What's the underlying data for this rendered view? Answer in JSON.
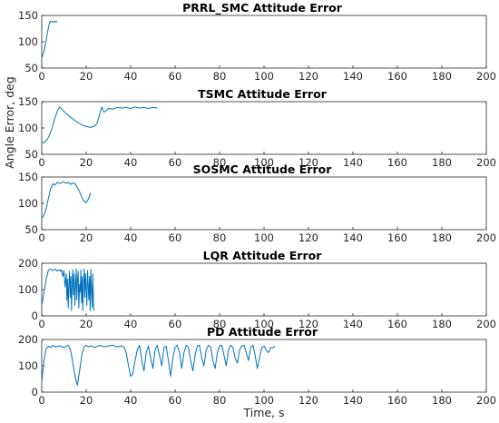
{
  "figure": {
    "xlabel": "Time, s",
    "ylabel": "Angle Error, deg",
    "line_color": "#0072bd"
  },
  "chart_data": [
    {
      "type": "line",
      "title": "PRRL_SMC Attitude Error",
      "xlim": [
        0,
        200
      ],
      "ylim": [
        50,
        150
      ],
      "xticks": [
        0,
        20,
        40,
        60,
        80,
        100,
        120,
        140,
        160,
        180,
        200
      ],
      "yticks": [
        50,
        100,
        150
      ],
      "series": [
        {
          "x": [
            0,
            0.5,
            1,
            1.5,
            2,
            2.5,
            3,
            3.5,
            4,
            4.5,
            5,
            5.5,
            6,
            6.5,
            7
          ],
          "y": [
            70,
            75,
            82,
            92,
            103,
            115,
            127,
            136,
            139,
            138,
            139,
            137,
            139,
            138,
            139
          ]
        }
      ]
    },
    {
      "type": "line",
      "title": "TSMC Attitude Error",
      "xlim": [
        0,
        200
      ],
      "ylim": [
        50,
        150
      ],
      "xticks": [
        0,
        20,
        40,
        60,
        80,
        100,
        120,
        140,
        160,
        180,
        200
      ],
      "yticks": [
        50,
        100,
        150
      ],
      "series": [
        {
          "x": [
            0,
            1,
            2,
            3,
            4,
            5,
            6,
            7,
            8,
            9,
            10,
            12,
            14,
            16,
            18,
            20,
            22,
            24,
            25,
            26,
            27,
            28,
            29,
            30,
            32,
            34,
            36,
            38,
            40,
            42,
            44,
            46,
            48,
            50,
            52
          ],
          "y": [
            72,
            73,
            76,
            82,
            92,
            105,
            120,
            132,
            140,
            136,
            131,
            124,
            117,
            111,
            106,
            103,
            101,
            104,
            110,
            125,
            140,
            130,
            133,
            137,
            136,
            139,
            138,
            139,
            137,
            140,
            138,
            139,
            137,
            139,
            138
          ]
        }
      ]
    },
    {
      "type": "line",
      "title": "SOSMC Attitude Error",
      "xlim": [
        0,
        200
      ],
      "ylim": [
        50,
        150
      ],
      "xticks": [
        0,
        20,
        40,
        60,
        80,
        100,
        120,
        140,
        160,
        180,
        200
      ],
      "yticks": [
        50,
        100,
        150
      ],
      "series": [
        {
          "x": [
            0,
            1,
            2,
            3,
            4,
            5,
            6,
            7,
            8,
            9,
            10,
            11,
            12,
            13,
            14,
            15,
            16,
            17,
            18,
            19,
            20,
            21,
            22
          ],
          "y": [
            72,
            78,
            90,
            110,
            128,
            137,
            135,
            140,
            138,
            139,
            141,
            138,
            140,
            136,
            139,
            137,
            130,
            122,
            112,
            104,
            101,
            108,
            120
          ]
        }
      ]
    },
    {
      "type": "line",
      "title": "LQR Attitude Error",
      "xlim": [
        0,
        200
      ],
      "ylim": [
        0,
        200
      ],
      "xticks": [
        0,
        20,
        40,
        60,
        80,
        100,
        120,
        140,
        160,
        180,
        200
      ],
      "yticks": [
        0,
        100,
        200
      ],
      "series": [
        {
          "x": [
            0,
            1,
            2,
            3,
            4,
            5,
            6,
            7,
            8,
            8.5,
            9,
            9.5,
            10,
            10.5,
            11,
            11.3,
            11.6,
            11.9,
            12.2,
            12.5,
            12.8,
            13.1,
            13.4,
            13.7,
            14,
            14.3,
            14.6,
            14.9,
            15.2,
            15.5,
            15.8,
            16.1,
            16.4,
            16.7,
            17,
            17.3,
            17.6,
            17.9,
            18.2,
            18.5,
            18.8,
            19.1,
            19.4,
            19.7,
            20,
            20.3,
            20.6,
            20.9,
            21.2,
            21.5,
            21.8,
            22.1,
            22.4,
            22.7,
            23,
            23.3,
            23.6
          ],
          "y": [
            40,
            90,
            140,
            175,
            178,
            172,
            178,
            170,
            176,
            168,
            175,
            150,
            172,
            110,
            160,
            60,
            140,
            30,
            120,
            170,
            70,
            150,
            20,
            130,
            175,
            80,
            160,
            40,
            110,
            178,
            60,
            140,
            170,
            30,
            120,
            90,
            175,
            50,
            150,
            20,
            130,
            178,
            70,
            160,
            100,
            40,
            172,
            120,
            60,
            150,
            20,
            178,
            90,
            30,
            160,
            40,
            20
          ]
        }
      ]
    },
    {
      "type": "line",
      "title": "PD Attitude Error",
      "xlim": [
        0,
        200
      ],
      "ylim": [
        0,
        200
      ],
      "xticks": [
        0,
        20,
        40,
        60,
        80,
        100,
        120,
        140,
        160,
        180,
        200
      ],
      "yticks": [
        0,
        100,
        200
      ],
      "series": [
        {
          "x": [
            0,
            1,
            2,
            3,
            4,
            5,
            6,
            8,
            10,
            12,
            13,
            14,
            15,
            16,
            17,
            18,
            19,
            20,
            21,
            22,
            24,
            26,
            28,
            30,
            32,
            34,
            36,
            37,
            38,
            39,
            40,
            41,
            42,
            43,
            44,
            45,
            46,
            47,
            48,
            49,
            50,
            51,
            52,
            53,
            54,
            55,
            56,
            57,
            58,
            59,
            60,
            61,
            62,
            63,
            64,
            65,
            66,
            67,
            68,
            69,
            70,
            71,
            72,
            73,
            74,
            75,
            76,
            77,
            78,
            79,
            80,
            81,
            82,
            83,
            84,
            85,
            86,
            87,
            88,
            89,
            90,
            91,
            92,
            93,
            94,
            95,
            96,
            97,
            98,
            99,
            100,
            101,
            102,
            103,
            104,
            105
          ],
          "y": [
            40,
            120,
            165,
            175,
            170,
            178,
            172,
            176,
            170,
            178,
            160,
            110,
            60,
            25,
            80,
            140,
            170,
            178,
            172,
            176,
            170,
            178,
            172,
            176,
            178,
            172,
            176,
            170,
            150,
            100,
            60,
            70,
            120,
            160,
            178,
            120,
            80,
            150,
            175,
            130,
            90,
            160,
            178,
            140,
            100,
            170,
            175,
            120,
            60,
            130,
            170,
            178,
            150,
            90,
            150,
            178,
            170,
            120,
            80,
            140,
            176,
            178,
            130,
            100,
            160,
            178,
            172,
            120,
            90,
            150,
            176,
            178,
            140,
            100,
            160,
            178,
            170,
            130,
            110,
            160,
            176,
            178,
            150,
            120,
            170,
            178,
            140,
            90,
            130,
            170,
            175,
            160,
            150,
            170,
            168,
            175
          ]
        }
      ]
    }
  ]
}
